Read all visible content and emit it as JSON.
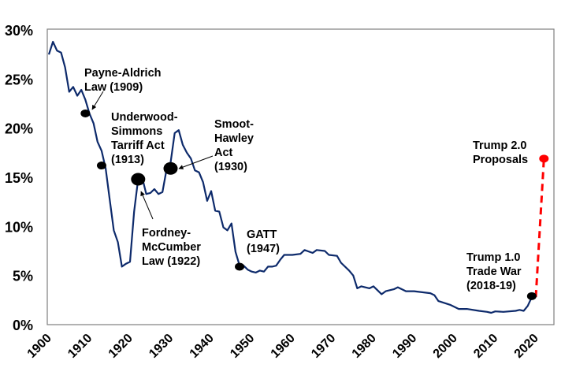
{
  "chart_data": {
    "type": "line",
    "title": "",
    "xlabel": "",
    "ylabel": "",
    "xlim": [
      1900,
      2024
    ],
    "ylim": [
      0,
      30
    ],
    "grid": false,
    "y_ticks": [
      "0%",
      "5%",
      "10%",
      "15%",
      "20%",
      "25%",
      "30%"
    ],
    "y_tick_values": [
      0,
      5,
      10,
      15,
      20,
      25,
      30
    ],
    "x_ticks": [
      "1900",
      "1910",
      "1920",
      "1930",
      "1940",
      "1950",
      "1960",
      "1970",
      "1980",
      "1990",
      "2000",
      "2010",
      "2020"
    ],
    "x_tick_values": [
      1900,
      1910,
      1920,
      1930,
      1940,
      1950,
      1960,
      1970,
      1980,
      1990,
      2000,
      2010,
      2020
    ],
    "line_color": "#0d2a6b",
    "series": [
      {
        "x": [
          1900,
          1901,
          1902,
          1903,
          1904,
          1905,
          1906,
          1907,
          1908,
          1909,
          1910,
          1911,
          1912,
          1913,
          1914,
          1915,
          1916,
          1917,
          1918,
          1919,
          1920,
          1921,
          1922,
          1923,
          1924,
          1925,
          1926,
          1927,
          1928,
          1929,
          1930,
          1931,
          1932,
          1933,
          1934,
          1935,
          1936,
          1937,
          1938,
          1939,
          1940,
          1941,
          1942,
          1943,
          1944,
          1945,
          1946,
          1947,
          1948,
          1949,
          1950,
          1951,
          1952,
          1953,
          1954,
          1955,
          1956,
          1957,
          1958,
          1960,
          1962,
          1963,
          1965,
          1966,
          1968,
          1969,
          1971,
          1972,
          1974,
          1975,
          1976,
          1977,
          1979,
          1980,
          1982,
          1983,
          1985,
          1986,
          1988,
          1990,
          1992,
          1994,
          1995,
          1996,
          1999,
          2001,
          2003,
          2006,
          2008,
          2009,
          2010,
          2012,
          2015,
          2016,
          2017,
          2018,
          2019
        ],
        "values": [
          27.5,
          28.8,
          27.9,
          27.7,
          26.2,
          23.7,
          24.2,
          23.3,
          23.9,
          22.9,
          21.5,
          20.5,
          18.6,
          17.7,
          15.9,
          12.7,
          9.6,
          8.4,
          5.9,
          6.2,
          6.4,
          11.5,
          14.8,
          15.0,
          13.3,
          13.4,
          13.8,
          13.3,
          13.5,
          15.8,
          16.5,
          19.5,
          19.8,
          18.3,
          17.5,
          16.9,
          15.7,
          15.5,
          14.5,
          12.6,
          13.6,
          11.6,
          11.5,
          9.9,
          9.6,
          10.3,
          7.4,
          6.0,
          6.0,
          5.6,
          5.4,
          5.3,
          5.5,
          5.4,
          5.9,
          5.9,
          6.0,
          6.6,
          7.1,
          7.1,
          7.2,
          7.6,
          7.3,
          7.6,
          7.5,
          7.1,
          7.0,
          6.3,
          5.5,
          5.0,
          3.7,
          3.9,
          3.7,
          3.9,
          3.1,
          3.4,
          3.6,
          3.8,
          3.4,
          3.4,
          3.3,
          3.2,
          3.0,
          2.4,
          2.0,
          1.6,
          1.6,
          1.4,
          1.3,
          1.2,
          1.35,
          1.3,
          1.4,
          1.5,
          1.4,
          1.9,
          2.8
        ]
      }
    ],
    "projection": {
      "from": [
        2020,
        2.8
      ],
      "to": [
        2022,
        16.9
      ],
      "color": "#ff0000",
      "style": "dashed"
    },
    "annotations": [
      {
        "lines": [
          "Payne-Aldrich",
          "Law (1909)"
        ],
        "year": 1909,
        "value": 21.5,
        "marker": "black",
        "size": "small",
        "arrow": true
      },
      {
        "lines": [
          "Underwood-",
          "Simmons",
          "Tarriff Act",
          "(1913)"
        ],
        "year": 1913,
        "value": 16.2,
        "marker": "black",
        "size": "small",
        "arrow": false
      },
      {
        "lines": [
          "Fordney-",
          "McCumber",
          "Law (1922)"
        ],
        "year": 1922,
        "value": 14.8,
        "marker": "black",
        "size": "large",
        "arrow": true
      },
      {
        "lines": [
          "Smoot-",
          "Hawley",
          "Act",
          "(1930)"
        ],
        "year": 1930,
        "value": 15.9,
        "marker": "black",
        "size": "large",
        "arrow": true
      },
      {
        "lines": [
          "GATT",
          "(1947)"
        ],
        "year": 1947,
        "value": 5.9,
        "marker": "black",
        "size": "small",
        "arrow": false
      },
      {
        "lines": [
          "Trump 1.0",
          "Trade War",
          "(2018-19)"
        ],
        "year": 2019,
        "value": 2.9,
        "marker": "black",
        "size": "small",
        "arrow": false
      },
      {
        "lines": [
          "Trump 2.0",
          "Proposals"
        ],
        "year": 2022,
        "value": 16.9,
        "marker": "#ff0000",
        "size": "small",
        "arrow": false
      }
    ]
  }
}
